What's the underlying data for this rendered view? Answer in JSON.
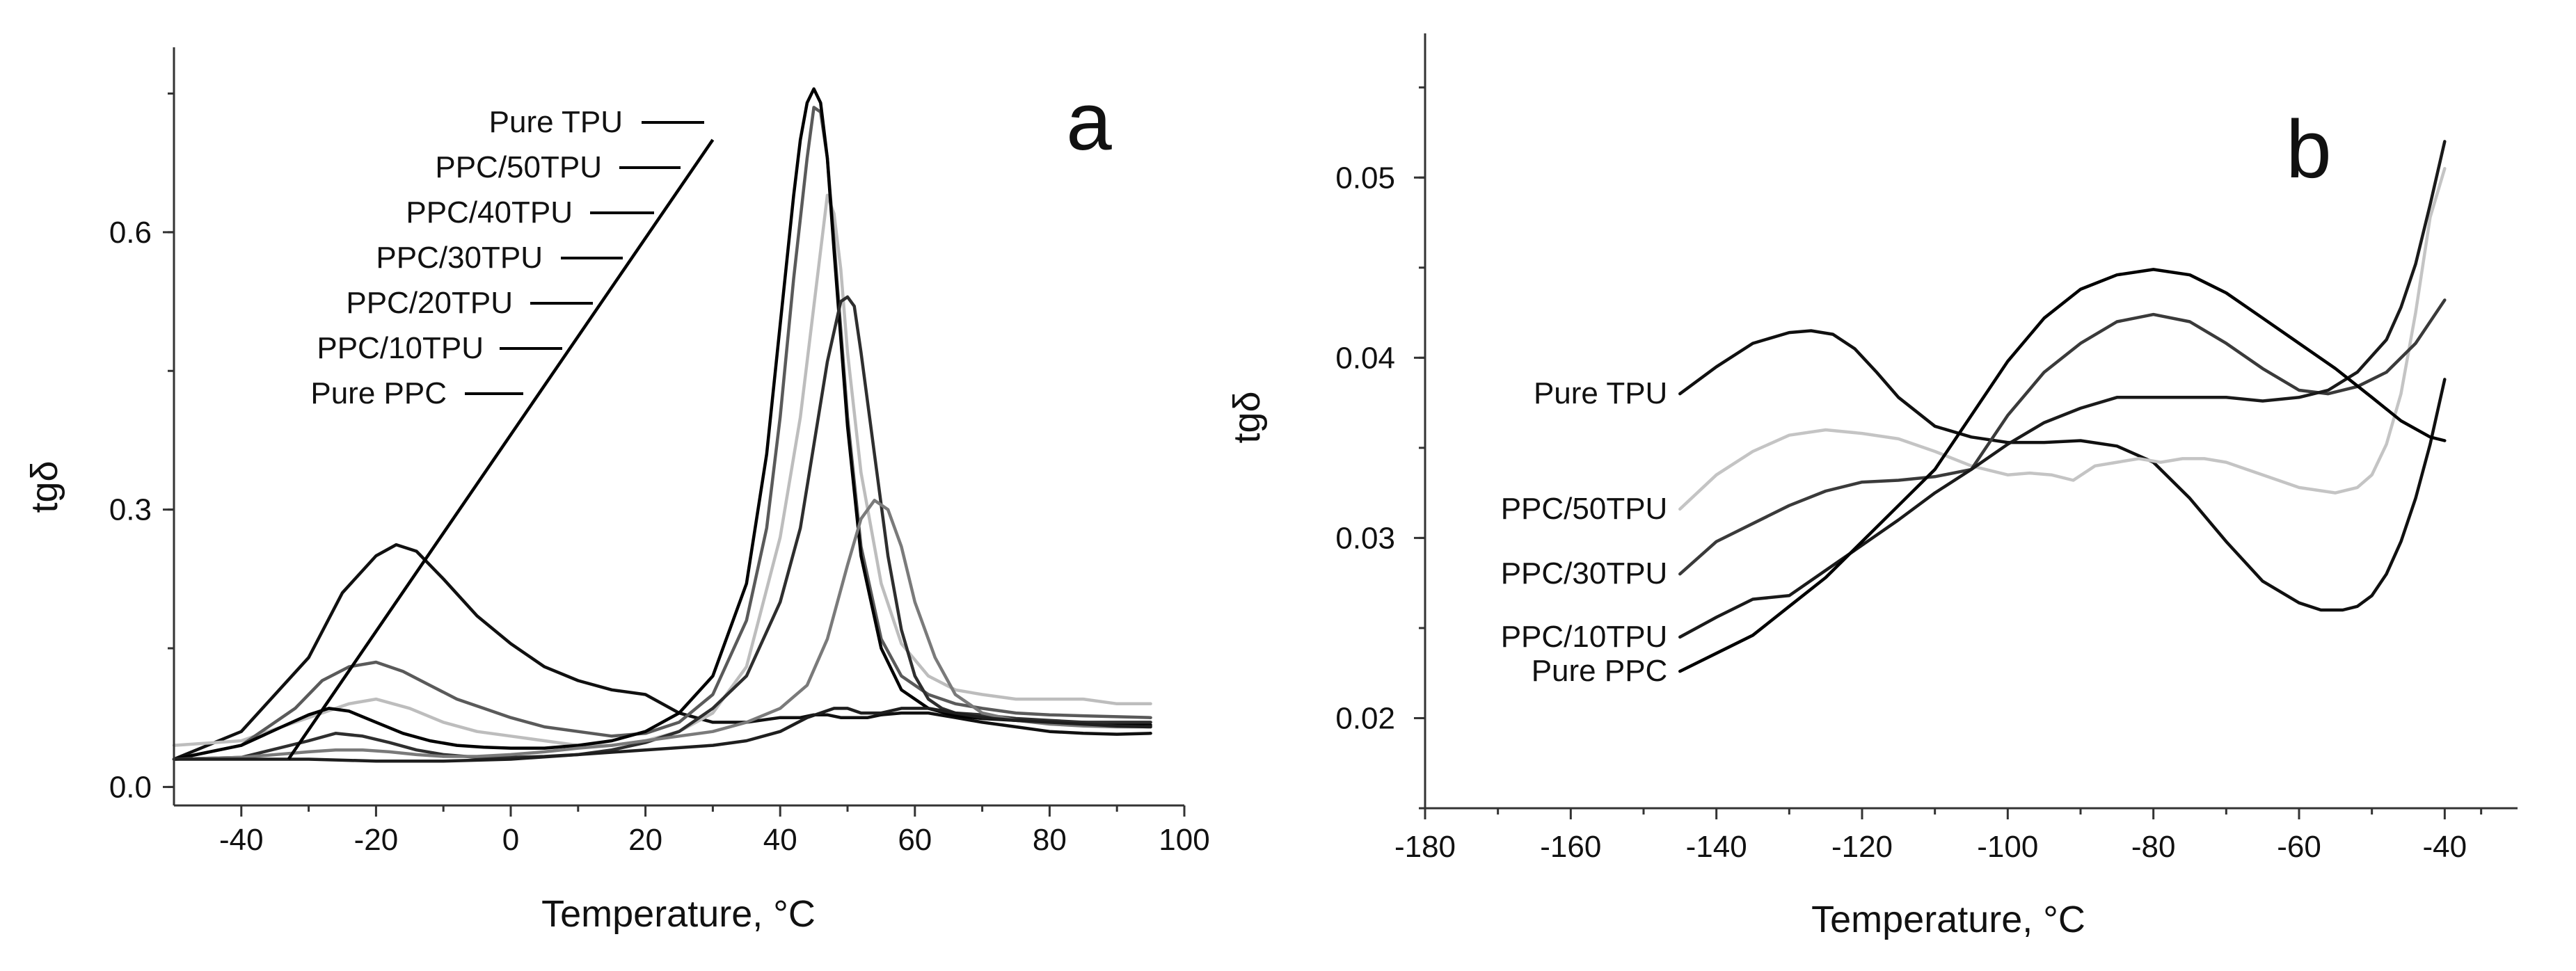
{
  "chart_data": [
    {
      "type": "line",
      "panel_label": "a",
      "xlabel": "Temperature, °C",
      "ylabel": "tgδ",
      "xlim": [
        -50,
        100
      ],
      "ylim": [
        -0.02,
        0.8
      ],
      "xticks": [
        -40,
        -20,
        0,
        20,
        40,
        60,
        80,
        100
      ],
      "yticks": [
        0.0,
        0.3,
        0.6
      ],
      "ytick_labels": [
        "0.0",
        "0.3",
        "0.6"
      ],
      "legend_pointer": {
        "start": [
          -33,
          0.03
        ],
        "end": [
          30,
          0.7
        ]
      },
      "series": [
        {
          "name": "Pure TPU",
          "color": "#101010",
          "x": [
            -50,
            -40,
            -30,
            -25,
            -20,
            -17,
            -14,
            -10,
            -5,
            0,
            5,
            10,
            15,
            20,
            25,
            30,
            35,
            40,
            43,
            45,
            47,
            49,
            51,
            53,
            55,
            58,
            62,
            66,
            70,
            75,
            80,
            85,
            90,
            95
          ],
          "y": [
            0.03,
            0.06,
            0.14,
            0.21,
            0.25,
            0.262,
            0.255,
            0.225,
            0.185,
            0.155,
            0.13,
            0.115,
            0.105,
            0.1,
            0.08,
            0.07,
            0.07,
            0.075,
            0.075,
            0.078,
            0.078,
            0.075,
            0.075,
            0.075,
            0.078,
            0.08,
            0.08,
            0.075,
            0.07,
            0.065,
            0.06,
            0.058,
            0.057,
            0.058
          ]
        },
        {
          "name": "PPC/50TPU",
          "color": "#bdbdbd",
          "x": [
            -50,
            -40,
            -30,
            -24,
            -20,
            -15,
            -10,
            -5,
            0,
            5,
            10,
            15,
            20,
            25,
            30,
            35,
            40,
            43,
            45,
            46,
            47,
            48,
            49,
            50,
            52,
            55,
            58,
            62,
            66,
            70,
            75,
            80,
            85,
            90,
            95
          ],
          "y": [
            0.045,
            0.05,
            0.075,
            0.09,
            0.095,
            0.085,
            0.07,
            0.06,
            0.055,
            0.05,
            0.045,
            0.045,
            0.05,
            0.06,
            0.08,
            0.13,
            0.27,
            0.4,
            0.52,
            0.58,
            0.64,
            0.62,
            0.56,
            0.47,
            0.34,
            0.22,
            0.155,
            0.12,
            0.105,
            0.1,
            0.095,
            0.095,
            0.095,
            0.09,
            0.09
          ]
        },
        {
          "name": "PPC/40TPU",
          "color": "#5a5a5a",
          "x": [
            -50,
            -40,
            -32,
            -28,
            -24,
            -20,
            -16,
            -12,
            -8,
            -4,
            0,
            5,
            10,
            15,
            20,
            25,
            30,
            35,
            38,
            40,
            42,
            44,
            45,
            46,
            47,
            48,
            50,
            52,
            55,
            58,
            62,
            66,
            70,
            75,
            80,
            85,
            90,
            95
          ],
          "y": [
            0.03,
            0.045,
            0.085,
            0.115,
            0.13,
            0.135,
            0.125,
            0.11,
            0.095,
            0.085,
            0.075,
            0.065,
            0.06,
            0.055,
            0.058,
            0.07,
            0.1,
            0.18,
            0.28,
            0.4,
            0.55,
            0.68,
            0.735,
            0.73,
            0.68,
            0.59,
            0.4,
            0.26,
            0.16,
            0.12,
            0.1,
            0.09,
            0.085,
            0.08,
            0.078,
            0.077,
            0.076,
            0.075
          ]
        },
        {
          "name": "PPC/30TPU",
          "color": "#000000",
          "x": [
            -50,
            -40,
            -34,
            -30,
            -27,
            -24,
            -20,
            -16,
            -12,
            -8,
            -4,
            0,
            5,
            10,
            15,
            20,
            25,
            30,
            35,
            38,
            40,
            42,
            43,
            44,
            45,
            46,
            47,
            48,
            50,
            52,
            55,
            58,
            62,
            66,
            70,
            75,
            80,
            85,
            90,
            95
          ],
          "y": [
            0.03,
            0.045,
            0.065,
            0.078,
            0.085,
            0.082,
            0.07,
            0.058,
            0.05,
            0.045,
            0.043,
            0.042,
            0.042,
            0.045,
            0.05,
            0.06,
            0.08,
            0.12,
            0.22,
            0.36,
            0.5,
            0.64,
            0.7,
            0.74,
            0.755,
            0.74,
            0.68,
            0.58,
            0.39,
            0.25,
            0.15,
            0.105,
            0.085,
            0.077,
            0.074,
            0.072,
            0.07,
            0.07,
            0.068,
            0.067
          ]
        },
        {
          "name": "PPC/20TPU",
          "color": "#2e2e2e",
          "x": [
            -50,
            -40,
            -30,
            -26,
            -22,
            -18,
            -14,
            -10,
            -5,
            0,
            5,
            10,
            15,
            20,
            25,
            30,
            35,
            40,
            43,
            45,
            47,
            49,
            50,
            51,
            52,
            54,
            56,
            58,
            60,
            62,
            64,
            66,
            70,
            75,
            80,
            85,
            90,
            95
          ],
          "y": [
            0.03,
            0.032,
            0.05,
            0.058,
            0.055,
            0.048,
            0.04,
            0.035,
            0.032,
            0.032,
            0.033,
            0.035,
            0.04,
            0.048,
            0.06,
            0.085,
            0.12,
            0.2,
            0.28,
            0.37,
            0.46,
            0.525,
            0.53,
            0.52,
            0.47,
            0.36,
            0.25,
            0.17,
            0.12,
            0.095,
            0.085,
            0.08,
            0.078,
            0.074,
            0.072,
            0.07,
            0.07,
            0.07
          ]
        },
        {
          "name": "PPC/10TPU",
          "color": "#7a7a7a",
          "x": [
            -50,
            -40,
            -30,
            -26,
            -22,
            -18,
            -14,
            -10,
            -5,
            0,
            5,
            10,
            15,
            20,
            25,
            30,
            35,
            40,
            44,
            47,
            50,
            52,
            54,
            56,
            58,
            60,
            63,
            66,
            70,
            75,
            80,
            85,
            90,
            95
          ],
          "y": [
            0.03,
            0.032,
            0.038,
            0.04,
            0.04,
            0.038,
            0.035,
            0.033,
            0.033,
            0.035,
            0.038,
            0.042,
            0.045,
            0.05,
            0.055,
            0.06,
            0.07,
            0.085,
            0.11,
            0.16,
            0.24,
            0.29,
            0.31,
            0.3,
            0.26,
            0.2,
            0.14,
            0.1,
            0.08,
            0.072,
            0.068,
            0.066,
            0.065,
            0.065
          ]
        },
        {
          "name": "Pure PPC",
          "color": "#1e1e1e",
          "x": [
            -50,
            -40,
            -30,
            -20,
            -10,
            0,
            10,
            20,
            30,
            35,
            40,
            44,
            48,
            50,
            52,
            55,
            58,
            62,
            66,
            70,
            75,
            80,
            85,
            90,
            95
          ],
          "y": [
            0.03,
            0.03,
            0.03,
            0.028,
            0.028,
            0.03,
            0.035,
            0.04,
            0.045,
            0.05,
            0.06,
            0.075,
            0.085,
            0.085,
            0.08,
            0.08,
            0.085,
            0.085,
            0.08,
            0.075,
            0.072,
            0.07,
            0.068,
            0.066,
            0.065
          ]
        }
      ]
    },
    {
      "type": "line",
      "panel_label": "b",
      "xlabel": "Temperature, °C",
      "ylabel": "tgδ",
      "xlim": [
        -180,
        -30
      ],
      "ylim": [
        0.015,
        0.058
      ],
      "xticks": [
        -180,
        -160,
        -140,
        -120,
        -100,
        -80,
        -60,
        -40
      ],
      "yticks": [
        0.02,
        0.03,
        0.04,
        0.05
      ],
      "ytick_labels": [
        "0.02",
        "0.03",
        "0.04",
        "0.05"
      ],
      "series": [
        {
          "name": "Pure TPU",
          "color": "#101010",
          "x": [
            -145,
            -140,
            -135,
            -130,
            -127,
            -124,
            -121,
            -118,
            -115,
            -110,
            -105,
            -100,
            -95,
            -90,
            -85,
            -80,
            -75,
            -70,
            -65,
            -60,
            -57,
            -54,
            -52,
            -50,
            -48,
            -46,
            -44,
            -42,
            -40
          ],
          "y": [
            0.038,
            0.0395,
            0.0408,
            0.0414,
            0.0415,
            0.0413,
            0.0405,
            0.0392,
            0.0378,
            0.0362,
            0.0356,
            0.0353,
            0.0353,
            0.0354,
            0.0351,
            0.0342,
            0.0322,
            0.0298,
            0.0276,
            0.0264,
            0.026,
            0.026,
            0.0262,
            0.0268,
            0.028,
            0.0298,
            0.0322,
            0.0352,
            0.0388
          ]
        },
        {
          "name": "PPC/50TPU",
          "color": "#c4c4c4",
          "x": [
            -145,
            -140,
            -135,
            -130,
            -125,
            -120,
            -115,
            -110,
            -105,
            -100,
            -97,
            -94,
            -91,
            -88,
            -85,
            -82,
            -79,
            -76,
            -73,
            -70,
            -65,
            -60,
            -55,
            -52,
            -50,
            -48,
            -46,
            -44,
            -42,
            -40
          ],
          "y": [
            0.0316,
            0.0335,
            0.0348,
            0.0357,
            0.036,
            0.0358,
            0.0355,
            0.0348,
            0.034,
            0.0335,
            0.0336,
            0.0335,
            0.0332,
            0.034,
            0.0342,
            0.0344,
            0.0342,
            0.0344,
            0.0344,
            0.0342,
            0.0335,
            0.0328,
            0.0325,
            0.0328,
            0.0335,
            0.0352,
            0.038,
            0.0425,
            0.0478,
            0.0505
          ]
        },
        {
          "name": "PPC/30TPU",
          "color": "#3a3a3a",
          "x": [
            -145,
            -140,
            -135,
            -130,
            -125,
            -120,
            -115,
            -110,
            -105,
            -100,
            -95,
            -90,
            -85,
            -80,
            -75,
            -70,
            -65,
            -60,
            -56,
            -52,
            -48,
            -44,
            -40
          ],
          "y": [
            0.028,
            0.0298,
            0.0308,
            0.0318,
            0.0326,
            0.0331,
            0.0332,
            0.0334,
            0.0338,
            0.0368,
            0.0392,
            0.0408,
            0.042,
            0.0424,
            0.042,
            0.0408,
            0.0394,
            0.0382,
            0.038,
            0.0384,
            0.0392,
            0.0408,
            0.0432
          ]
        },
        {
          "name": "PPC/10TPU",
          "color": "#1a1a1a",
          "x": [
            -145,
            -140,
            -135,
            -130,
            -125,
            -120,
            -115,
            -110,
            -105,
            -100,
            -95,
            -90,
            -85,
            -80,
            -75,
            -70,
            -65,
            -60,
            -56,
            -52,
            -48,
            -46,
            -44,
            -42,
            -40
          ],
          "y": [
            0.0245,
            0.0256,
            0.0266,
            0.0268,
            0.0282,
            0.0296,
            0.031,
            0.0325,
            0.0338,
            0.0352,
            0.0364,
            0.0372,
            0.0378,
            0.0378,
            0.0378,
            0.0378,
            0.0376,
            0.0378,
            0.0382,
            0.0392,
            0.041,
            0.0428,
            0.0452,
            0.0485,
            0.052
          ]
        },
        {
          "name": "Pure PPC",
          "color": "#000000",
          "x": [
            -145,
            -140,
            -135,
            -130,
            -125,
            -120,
            -115,
            -110,
            -105,
            -100,
            -95,
            -90,
            -85,
            -80,
            -75,
            -70,
            -65,
            -60,
            -55,
            -50,
            -46,
            -42,
            -40
          ],
          "y": [
            0.0226,
            0.0236,
            0.0246,
            0.0262,
            0.0278,
            0.0298,
            0.0318,
            0.0338,
            0.0368,
            0.0398,
            0.0422,
            0.0438,
            0.0446,
            0.0449,
            0.0446,
            0.0436,
            0.0422,
            0.0408,
            0.0394,
            0.0378,
            0.0365,
            0.0356,
            0.0354
          ]
        }
      ]
    }
  ]
}
